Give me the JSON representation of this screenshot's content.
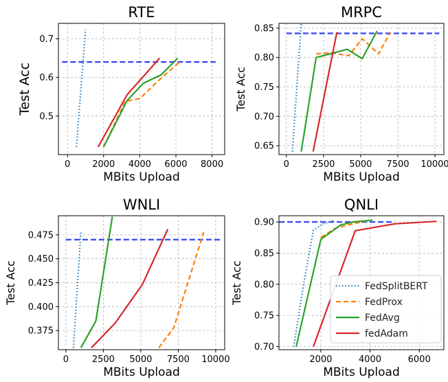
{
  "figure": {
    "legend_location": "lower-right of QNLI panel"
  },
  "colors": {
    "FedSplitBERT": "#1f77b4",
    "FedProx": "#ff7f0e",
    "FedAvg": "#2ca02c",
    "fedAdam": "#d62728",
    "baseline": "#3b4cf0"
  },
  "legend": {
    "items": [
      {
        "label": "FedSplitBERT",
        "style": "dotted"
      },
      {
        "label": "FedProx",
        "style": "dashed"
      },
      {
        "label": "FedAvg",
        "style": "solid"
      },
      {
        "label": "fedAdam",
        "style": "solid"
      }
    ]
  },
  "chart_data": [
    {
      "type": "line",
      "title": "RTE",
      "xlabel": "MBits Upload",
      "ylabel": "Test Acc",
      "xlim": [
        -500,
        8700
      ],
      "ylim": [
        0.4,
        0.74
      ],
      "xticks": [
        0,
        2000,
        4000,
        6000,
        8000
      ],
      "xtick_labels": [
        "0",
        "2000",
        "4000",
        "6000",
        "8000"
      ],
      "yticks": [
        0.5,
        0.6,
        0.7
      ],
      "ytick_labels": [
        "0.5",
        "0.6",
        "0.7"
      ],
      "grid": true,
      "baseline": {
        "y": 0.64,
        "x": [
          -300,
          8200
        ]
      },
      "series": [
        {
          "name": "FedSplitBERT",
          "x": [
            500,
            1000
          ],
          "y": [
            0.42,
            0.725
          ]
        },
        {
          "name": "FedProx",
          "x": [
            2000,
            3200,
            4000,
            5000,
            6200
          ],
          "y": [
            0.42,
            0.538,
            0.545,
            0.59,
            0.64
          ]
        },
        {
          "name": "FedAvg",
          "x": [
            2000,
            3300,
            4200,
            5200,
            6100
          ],
          "y": [
            0.42,
            0.54,
            0.585,
            0.607,
            0.65
          ]
        },
        {
          "name": "fedAdam",
          "x": [
            1700,
            3300,
            5100
          ],
          "y": [
            0.42,
            0.555,
            0.65
          ]
        }
      ]
    },
    {
      "type": "line",
      "title": "MRPC",
      "xlabel": "MBits Upload",
      "ylabel": "Test Acc",
      "xlim": [
        -500,
        10600
      ],
      "ylim": [
        0.635,
        0.858
      ],
      "xticks": [
        0,
        2500,
        5000,
        7500,
        10000
      ],
      "xtick_labels": [
        "0",
        "2500",
        "5000",
        "7500",
        "10000"
      ],
      "yticks": [
        0.65,
        0.7,
        0.75,
        0.8,
        0.85
      ],
      "ytick_labels": [
        "0.65",
        "0.70",
        "0.75",
        "0.80",
        "0.85"
      ],
      "grid": true,
      "baseline": {
        "y": 0.841,
        "x": [
          0,
          10300
        ]
      },
      "series": [
        {
          "name": "FedSplitBERT",
          "x": [
            400,
            1000
          ],
          "y": [
            0.64,
            0.857
          ]
        },
        {
          "name": "FedProx",
          "x": [
            2000,
            3000,
            4200,
            5100,
            6200,
            7000
          ],
          "y": [
            0.806,
            0.808,
            0.803,
            0.832,
            0.806,
            0.843
          ]
        },
        {
          "name": "FedAvg",
          "x": [
            1000,
            2000,
            4100,
            5100,
            6100
          ],
          "y": [
            0.64,
            0.8,
            0.814,
            0.798,
            0.845
          ]
        },
        {
          "name": "fedAdam",
          "x": [
            1800,
            3400
          ],
          "y": [
            0.64,
            0.843
          ]
        }
      ]
    },
    {
      "type": "line",
      "title": "WNLI",
      "xlabel": "MBits Upload",
      "ylabel": "Test Acc",
      "xlim": [
        -500,
        10600
      ],
      "ylim": [
        0.355,
        0.495
      ],
      "xticks": [
        0,
        2500,
        5000,
        7500,
        10000
      ],
      "xtick_labels": [
        "0",
        "2500",
        "5000",
        "7500",
        "10000"
      ],
      "yticks": [
        0.375,
        0.4,
        0.425,
        0.45,
        0.475
      ],
      "ytick_labels": [
        "0.375",
        "0.400",
        "0.425",
        "0.450",
        "0.475"
      ],
      "grid": true,
      "baseline": {
        "y": 0.47,
        "x": [
          0,
          10400
        ]
      },
      "series": [
        {
          "name": "FedSplitBERT",
          "x": [
            500,
            1000
          ],
          "y": [
            0.357,
            0.478
          ]
        },
        {
          "name": "FedProx",
          "x": [
            6200,
            7200,
            9200
          ],
          "y": [
            0.357,
            0.378,
            0.478
          ]
        },
        {
          "name": "FedAvg",
          "x": [
            1000,
            2000,
            3100
          ],
          "y": [
            0.357,
            0.385,
            0.494
          ]
        },
        {
          "name": "fedAdam",
          "x": [
            1700,
            3300,
            5100,
            6800
          ],
          "y": [
            0.357,
            0.383,
            0.423,
            0.481
          ]
        }
      ]
    },
    {
      "type": "line",
      "title": "QNLI",
      "xlabel": "MBits Upload",
      "ylabel": "Test Acc",
      "xlim": [
        300,
        7000
      ],
      "ylim": [
        0.695,
        0.91
      ],
      "xticks": [
        2000,
        4000,
        6000
      ],
      "xtick_labels": [
        "2000",
        "4000",
        "6000"
      ],
      "yticks": [
        0.7,
        0.75,
        0.8,
        0.85,
        0.9
      ],
      "ytick_labels": [
        "0.70",
        "0.75",
        "0.80",
        "0.85",
        "0.90"
      ],
      "grid": true,
      "baseline": {
        "y": 0.9,
        "x": [
          300,
          5000
        ]
      },
      "series": [
        {
          "name": "FedSplitBERT",
          "x": [
            900,
            1300,
            1700,
            2100,
            2500
          ],
          "y": [
            0.7,
            0.8,
            0.887,
            0.897,
            0.902
          ]
        },
        {
          "name": "FedProx",
          "x": [
            2000,
            2600,
            3300,
            4000
          ],
          "y": [
            0.875,
            0.89,
            0.897,
            0.903
          ]
        },
        {
          "name": "FedAvg",
          "x": [
            1000,
            2000,
            2800,
            3300,
            4100
          ],
          "y": [
            0.7,
            0.872,
            0.895,
            0.9,
            0.903
          ]
        },
        {
          "name": "fedAdam",
          "x": [
            1700,
            3400,
            5000,
            6700
          ],
          "y": [
            0.7,
            0.886,
            0.897,
            0.901
          ]
        }
      ]
    }
  ]
}
